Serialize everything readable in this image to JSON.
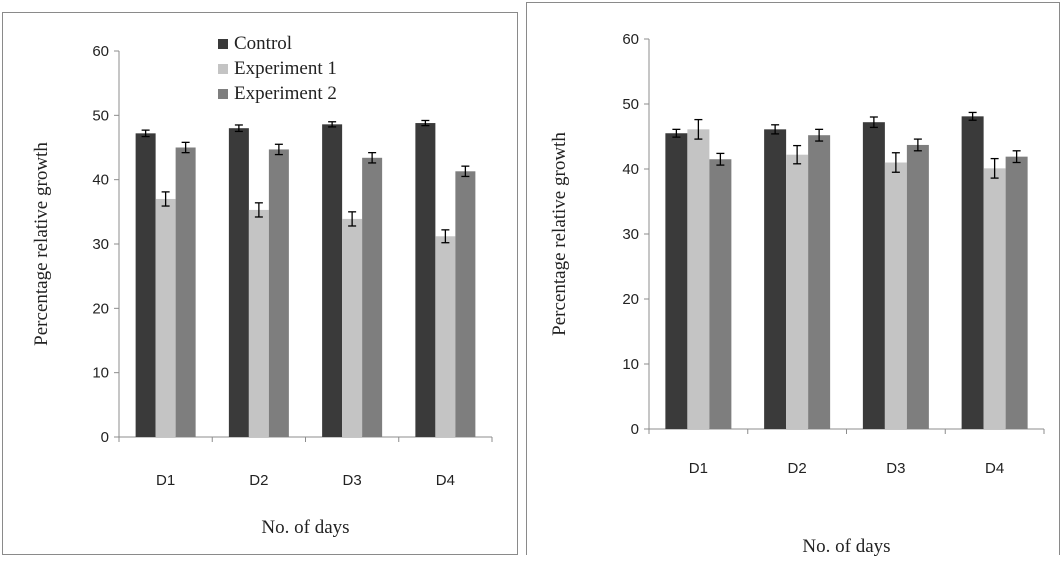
{
  "chart_data": [
    {
      "type": "bar",
      "xlabel": "No. of days",
      "ylabel": "Percentage relative growth",
      "categories": [
        "D1",
        "D2",
        "D3",
        "D4"
      ],
      "ylim": [
        0,
        60
      ],
      "yticks": [
        0,
        10,
        20,
        30,
        40,
        50,
        60
      ],
      "legend": "top-center",
      "series": [
        {
          "name": "Control",
          "color": "#3a3a3a",
          "values": [
            47.2,
            48.0,
            48.6,
            48.8
          ],
          "errors": [
            0.5,
            0.5,
            0.4,
            0.4
          ]
        },
        {
          "name": "Experiment 1",
          "color": "#c4c4c4",
          "values": [
            37.0,
            35.3,
            33.9,
            31.2
          ],
          "errors": [
            1.1,
            1.1,
            1.1,
            1.0
          ]
        },
        {
          "name": "Experiment 2",
          "color": "#7e7e7e",
          "values": [
            45.0,
            44.7,
            43.4,
            41.3
          ],
          "errors": [
            0.8,
            0.8,
            0.8,
            0.8
          ]
        }
      ]
    },
    {
      "type": "bar",
      "xlabel": "No. of days",
      "ylabel": "Percentage relative growth",
      "categories": [
        "D1",
        "D2",
        "D3",
        "D4"
      ],
      "ylim": [
        0,
        60
      ],
      "yticks": [
        0,
        10,
        20,
        30,
        40,
        50,
        60
      ],
      "series": [
        {
          "color": "#3a3a3a",
          "values": [
            45.5,
            46.1,
            47.2,
            48.1
          ],
          "errors": [
            0.6,
            0.7,
            0.8,
            0.6
          ]
        },
        {
          "color": "#c4c4c4",
          "values": [
            46.1,
            42.2,
            41.0,
            40.1
          ],
          "errors": [
            1.5,
            1.4,
            1.5,
            1.5
          ]
        },
        {
          "color": "#7e7e7e",
          "values": [
            41.5,
            45.2,
            43.7,
            41.9
          ],
          "errors": [
            0.9,
            0.9,
            0.9,
            0.9
          ]
        }
      ]
    }
  ]
}
